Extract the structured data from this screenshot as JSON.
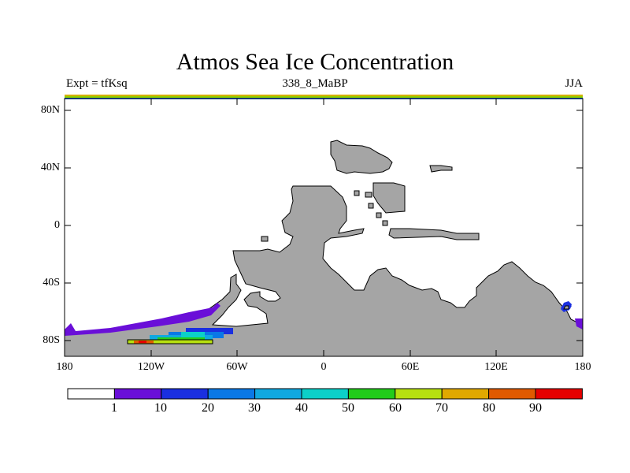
{
  "title": "Atmos Sea Ice Concentration",
  "subtitle_left": "Expt = tfKsq",
  "subtitle_center": "338_8_MaBP",
  "subtitle_right": "JJA",
  "map": {
    "projection": "equirectangular",
    "lon_range": [
      -180,
      180
    ],
    "lat_range": [
      -90,
      90
    ],
    "lat_ticks": [
      "80N",
      "40N",
      "0",
      "40S",
      "80S"
    ],
    "lon_ticks": [
      "180",
      "120W",
      "60W",
      "0",
      "60E",
      "120E",
      "180"
    ],
    "land_color": "#a5a5a5",
    "coast_color": "#000000"
  },
  "colorbar": {
    "colors": [
      "#ffffff",
      "#6a0fd8",
      "#1a2fe0",
      "#0a78e6",
      "#10a8e0",
      "#0cd0c8",
      "#22cc1a",
      "#b6e010",
      "#e0a800",
      "#e05a00",
      "#e60000"
    ],
    "labels": [
      "1",
      "10",
      "20",
      "30",
      "40",
      "50",
      "60",
      "70",
      "80",
      "90"
    ]
  }
}
